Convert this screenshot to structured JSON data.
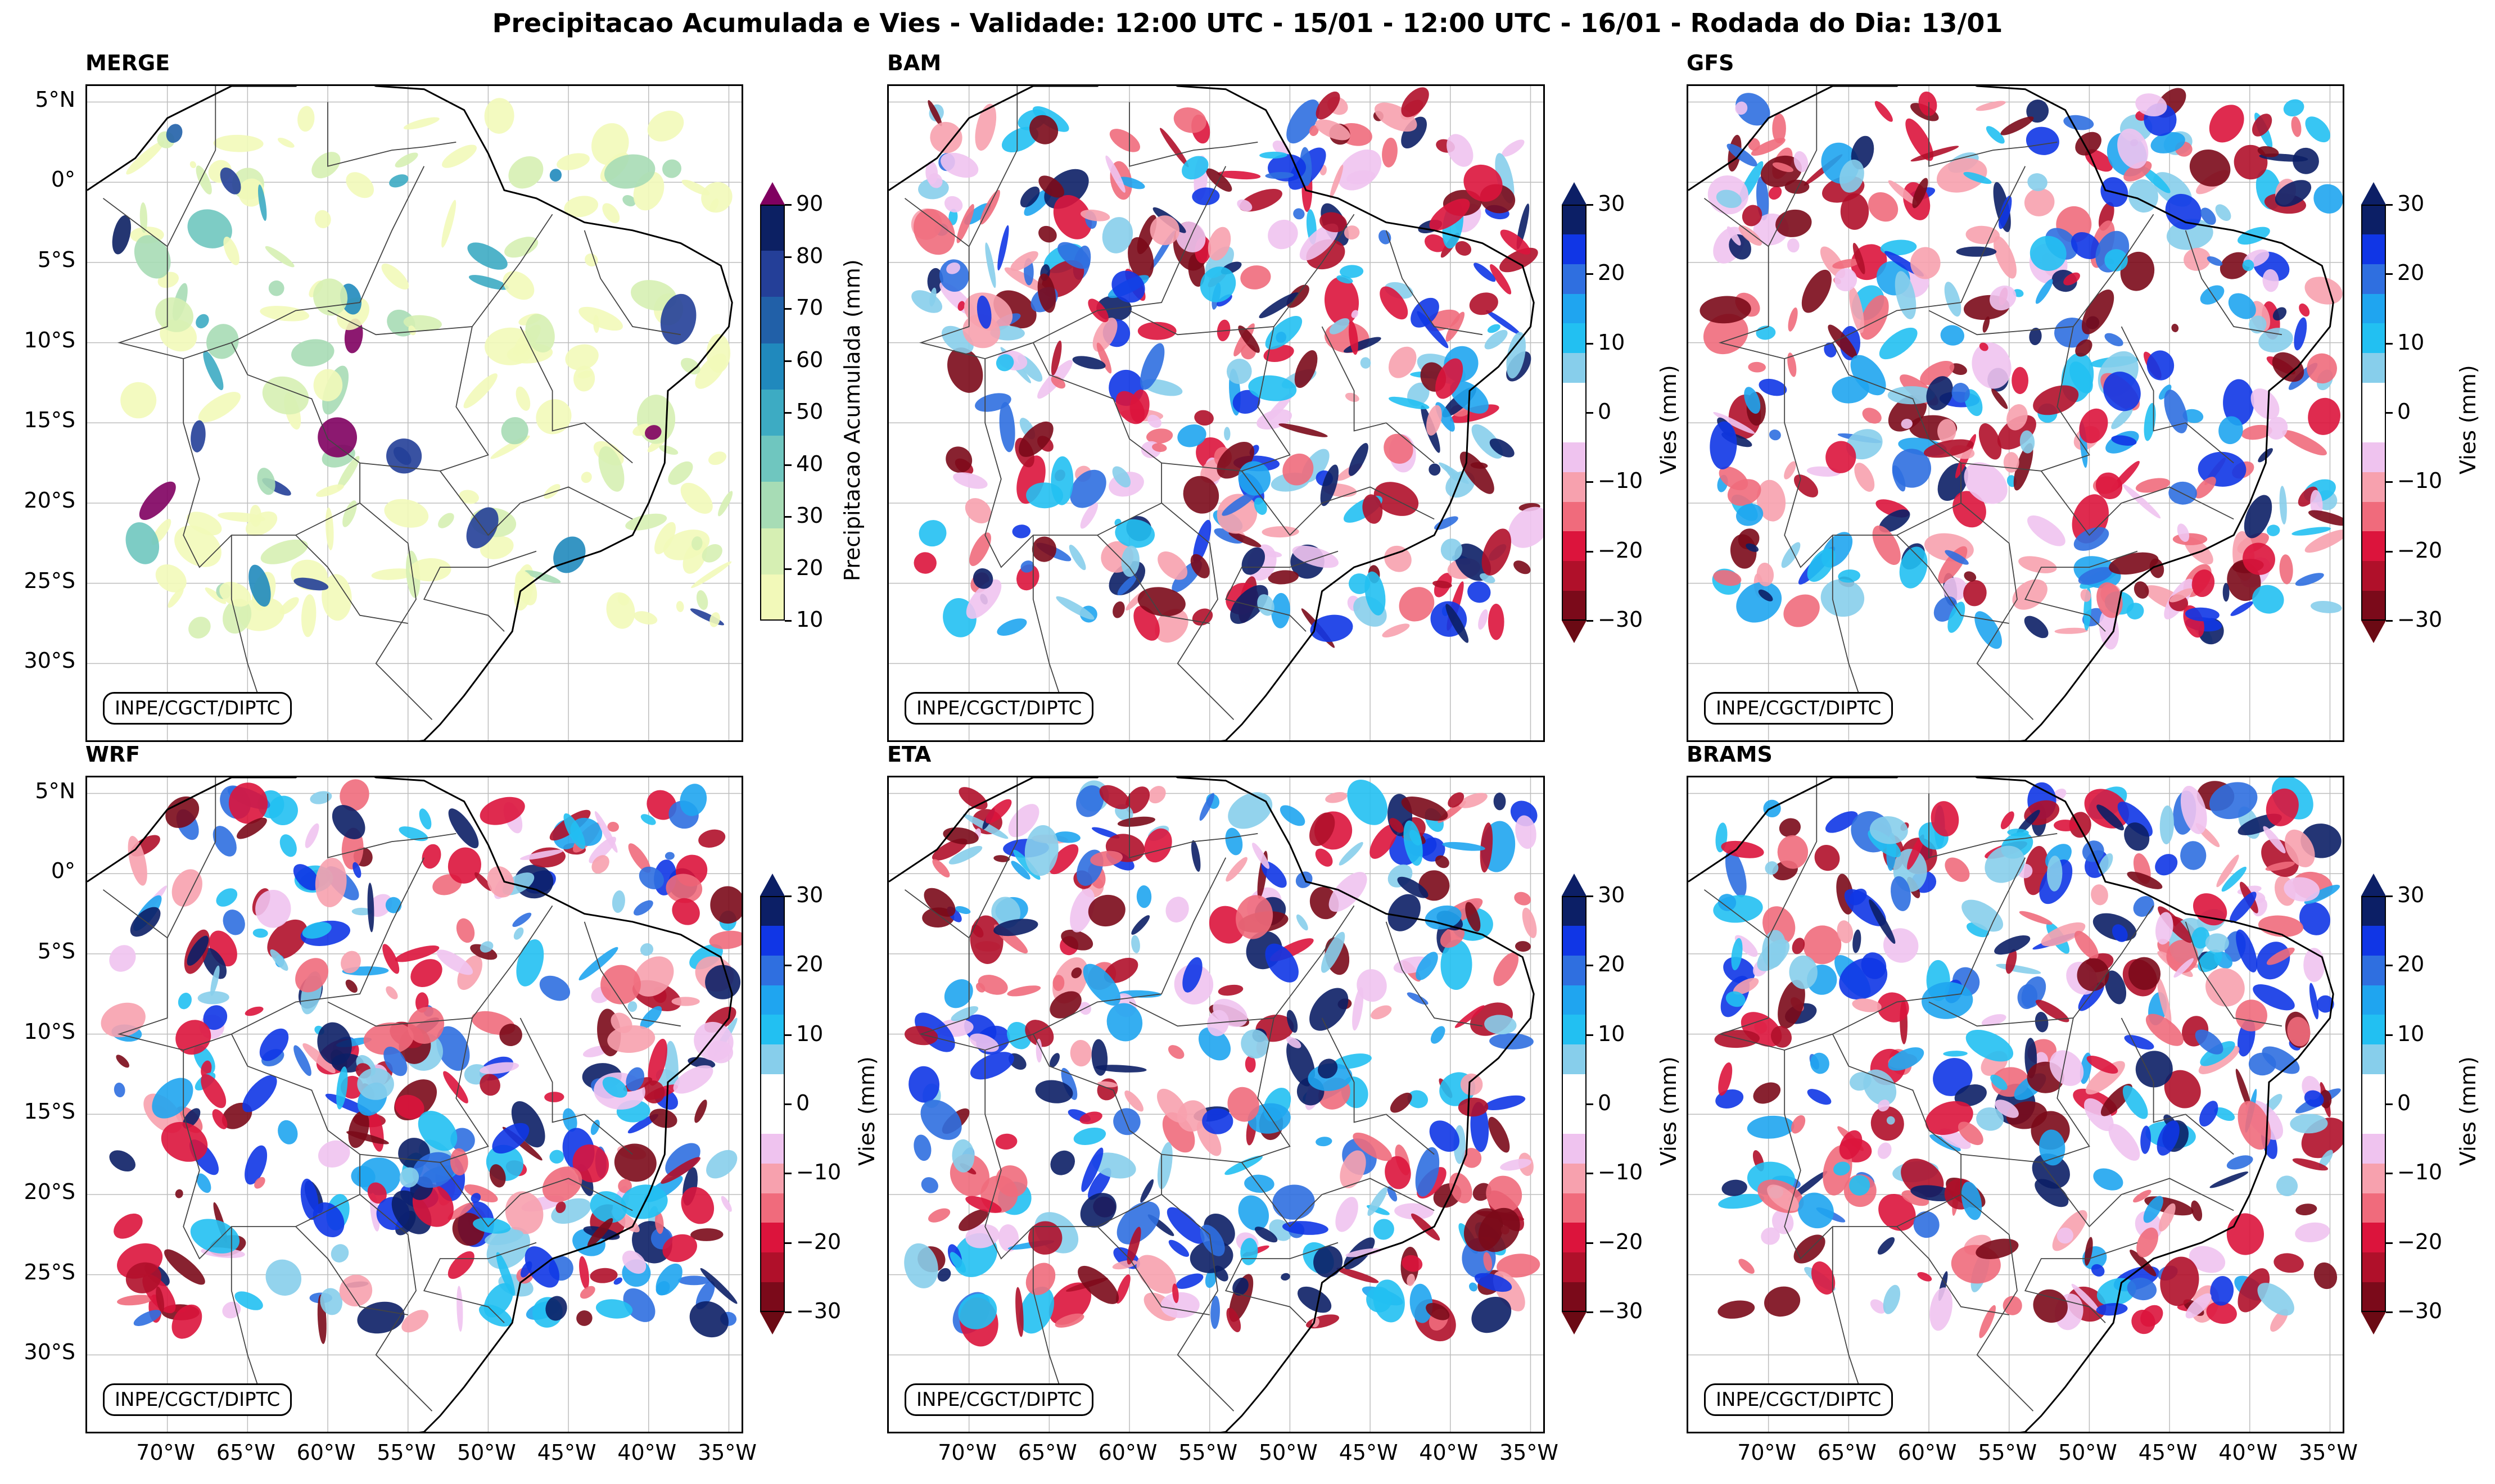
{
  "title": "Precipitacao Acumulada e Vies - Validade: 12:00 UTC - 15/01 - 12:00 UTC - 16/01 - Rodada do Dia: 13/01",
  "credit": "INPE/CGCT/DIPTC",
  "lat_labels": [
    "5°N",
    "0°",
    "5°S",
    "10°S",
    "15°S",
    "20°S",
    "25°S",
    "30°S"
  ],
  "lon_labels": [
    "70°W",
    "65°W",
    "60°W",
    "55°W",
    "50°W",
    "45°W",
    "40°W",
    "35°W"
  ],
  "panels": [
    {
      "name": "MERGE",
      "kind": "precip"
    },
    {
      "name": "BAM",
      "kind": "bias"
    },
    {
      "name": "GFS",
      "kind": "bias"
    },
    {
      "name": "WRF",
      "kind": "bias"
    },
    {
      "name": "ETA",
      "kind": "bias"
    },
    {
      "name": "BRAMS",
      "kind": "bias"
    }
  ],
  "precip_colorbar": {
    "label": "Precipitacao Acumulada (mm)",
    "ticks": [
      "10",
      "20",
      "30",
      "40",
      "50",
      "60",
      "70",
      "80",
      "90"
    ],
    "colors": [
      "#f2f9b9",
      "#d6efb3",
      "#a7dcb5",
      "#6fc6bf",
      "#3dabc3",
      "#2089bd",
      "#2160a8",
      "#243f98",
      "#0c2063"
    ],
    "over_color": "#800060",
    "under_color": "#ffffff"
  },
  "bias_colorbar": {
    "label": "Vies (mm)",
    "ticks": [
      "30",
      "20",
      "10",
      "0",
      "−10",
      "−20",
      "−30"
    ],
    "colors": [
      "#0c1f66",
      "#1036e6",
      "#2f6fe0",
      "#1fa5f0",
      "#22c0f2",
      "#87ceeb",
      "#ffffff",
      "#ffffff",
      "#efc3ef",
      "#f7a1ae",
      "#f06b7c",
      "#dc143c",
      "#b0102a",
      "#7b0a1a"
    ],
    "over_color": "#0c1f66",
    "under_color": "#6b0a14"
  }
}
